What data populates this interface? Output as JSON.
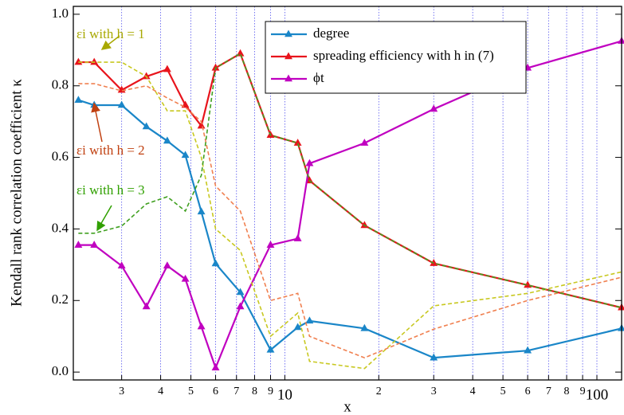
{
  "chart_data": {
    "type": "line",
    "x_label": "x",
    "y_label": "Kendall rank correlation coefficient κ",
    "x": [
      2.18,
      2.45,
      3,
      3.6,
      4.2,
      4.8,
      5.4,
      6,
      7.2,
      9,
      11,
      12,
      18,
      30,
      60,
      120
    ],
    "series": [
      {
        "name": "degree",
        "color": "#1a86c8",
        "marker": true,
        "dashed": false,
        "values": [
          0.76,
          0.746,
          0.746,
          0.686,
          0.646,
          0.606,
          0.448,
          0.303,
          0.223,
          0.062,
          0.125,
          0.143,
          0.122,
          0.04,
          0.06,
          0.122
        ]
      },
      {
        "name": "spreading efficiency with h in (7)",
        "color": "#e8141c",
        "marker": true,
        "dashed": false,
        "values": [
          0.866,
          0.866,
          0.788,
          0.826,
          0.846,
          0.746,
          0.688,
          0.85,
          0.89,
          0.662,
          0.64,
          0.535,
          0.41,
          0.304,
          0.243,
          0.18
        ]
      },
      {
        "name": "ϕt",
        "color": "#c000c0",
        "marker": true,
        "dashed": false,
        "values": [
          0.355,
          0.355,
          0.297,
          0.183,
          0.297,
          0.26,
          0.127,
          0.012,
          0.183,
          0.355,
          0.373,
          0.583,
          0.64,
          0.735,
          0.85,
          0.925
        ]
      }
    ],
    "curves": [
      {
        "label": "εi with h = 1",
        "color": "#c8c820",
        "values": [
          0.866,
          0.866,
          0.866,
          0.826,
          0.73,
          0.73,
          0.6,
          0.4,
          0.34,
          0.1,
          0.165,
          0.03,
          0.01,
          0.185,
          0.22,
          0.28
        ]
      },
      {
        "label": "εi with h = 2",
        "color": "#f08050",
        "values": [
          0.806,
          0.806,
          0.786,
          0.8,
          0.766,
          0.74,
          0.7,
          0.52,
          0.45,
          0.2,
          0.22,
          0.1,
          0.04,
          0.12,
          0.2,
          0.265
        ]
      },
      {
        "label": "εi with h = 3",
        "color": "#40a020",
        "values": [
          0.388,
          0.388,
          0.408,
          0.47,
          0.49,
          0.45,
          0.55,
          0.85,
          0.89,
          0.662,
          0.64,
          0.535,
          0.41,
          0.304,
          0.243,
          0.18
        ]
      }
    ],
    "log_x": true,
    "xlim": [
      2.1,
      120
    ],
    "xticks": [
      3,
      4,
      5,
      6,
      7,
      8,
      9,
      10,
      {
        "value": 20,
        "label": "2"
      },
      {
        "value": 30,
        "label": "3"
      },
      {
        "value": 40,
        "label": "4"
      },
      {
        "value": 50,
        "label": "5"
      },
      {
        "value": 60,
        "label": "6"
      },
      {
        "value": 70,
        "label": "7"
      },
      {
        "value": 80,
        "label": "8"
      },
      {
        "value": 90,
        "label": "9"
      },
      100
    ],
    "ylim": [
      -0.022,
      1.022
    ],
    "yticks": [
      {
        "value": 0,
        "label": "0.0"
      },
      0.2,
      0.4,
      0.6,
      0.8,
      {
        "value": 1,
        "label": "1.0"
      }
    ],
    "grid": true,
    "legend": "top"
  }
}
